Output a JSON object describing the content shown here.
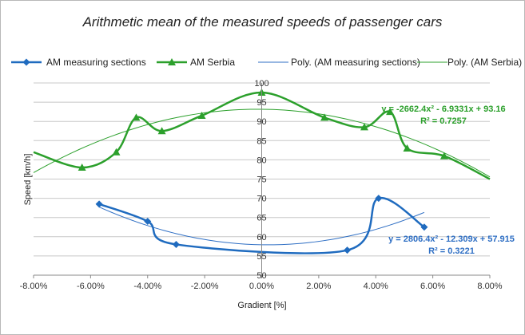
{
  "chart_data": {
    "type": "line",
    "title": "Arithmetic mean of the measured speeds of passenger cars",
    "xlabel": "Gradient [%]",
    "ylabel": "Speed [km/h]",
    "xlim": [
      -0.08,
      0.08
    ],
    "ylim": [
      50,
      100
    ],
    "x_ticks": [
      -0.08,
      -0.06,
      -0.04,
      -0.02,
      0,
      0.02,
      0.04,
      0.06,
      0.08
    ],
    "x_tick_labels": [
      "-8.00%",
      "-6.00%",
      "-4.00%",
      "-2.00%",
      "0.00%",
      "2.00%",
      "4.00%",
      "6.00%",
      "8.00%"
    ],
    "y_ticks": [
      50,
      55,
      60,
      65,
      70,
      75,
      80,
      85,
      90,
      95,
      100
    ],
    "grid": "horizontal",
    "legend_position": "top",
    "series": [
      {
        "name": "AM measuring sections",
        "color": "#1f6bbf",
        "marker": "diamond",
        "x": [
          -0.057,
          -0.04,
          -0.03,
          0.03,
          0.041,
          0.057
        ],
        "y": [
          68.5,
          64.0,
          58.0,
          56.5,
          70.0,
          62.5
        ]
      },
      {
        "name": "AM Serbia",
        "color": "#2ca02c",
        "marker": "triangle",
        "x": [
          -0.08,
          -0.063,
          -0.051,
          -0.044,
          -0.035,
          -0.021,
          0.0,
          0.022,
          0.036,
          0.045,
          0.051,
          0.064,
          0.08
        ],
        "y": [
          82.0,
          78.0,
          82.0,
          91.0,
          87.5,
          91.5,
          97.5,
          91.0,
          88.5,
          92.5,
          83.0,
          81.0,
          75.0
        ],
        "marker_mask": [
          false,
          true,
          true,
          true,
          true,
          true,
          true,
          true,
          true,
          true,
          true,
          true,
          false
        ]
      }
    ],
    "trendlines": [
      {
        "name": "Poly. (AM measuring sections)",
        "color": "#2f6fc4",
        "coefficients": [
          2806.4,
          -12.309,
          57.915
        ],
        "x_range": [
          -0.057,
          0.057
        ],
        "equation": "y = 2806.4x² - 12.309x + 57.915",
        "r2": "R² = 0.3221"
      },
      {
        "name": "Poly. (AM Serbia)",
        "color": "#2ca02c",
        "coefficients": [
          -2662.4,
          -6.9331,
          93.16
        ],
        "x_range": [
          -0.08,
          0.08
        ],
        "equation": "y = -2662.4x² - 6.9331x + 93.16",
        "r2": "R² = 0.7257"
      }
    ]
  }
}
